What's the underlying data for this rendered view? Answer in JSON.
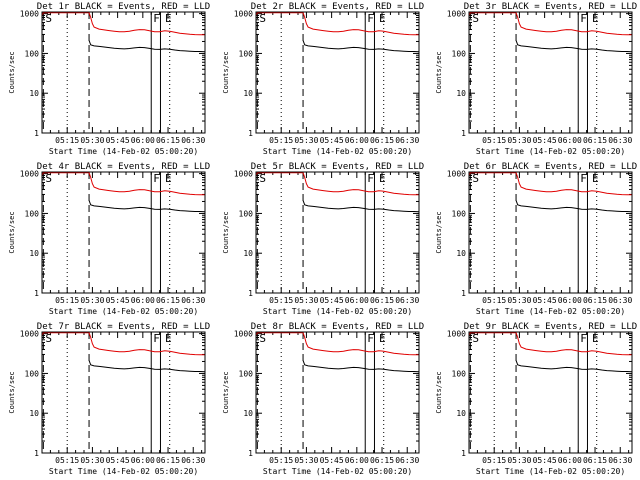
{
  "chart_data": [
    {
      "type": "line",
      "title": "Det 1r BLACK = Events, RED = LLD"
    },
    {
      "type": "line",
      "title": "Det 2r BLACK = Events, RED = LLD"
    },
    {
      "type": "line",
      "title": "Det 3r BLACK = Events, RED = LLD"
    },
    {
      "type": "line",
      "title": "Det 4r BLACK = Events, RED = LLD"
    },
    {
      "type": "line",
      "title": "Det 5r BLACK = Events, RED = LLD"
    },
    {
      "type": "line",
      "title": "Det 6r BLACK = Events, RED = LLD"
    },
    {
      "type": "line",
      "title": "Det 7r BLACK = Events, RED = LLD"
    },
    {
      "type": "line",
      "title": "Det 8r BLACK = Events, RED = LLD"
    },
    {
      "type": "line",
      "title": "Det 9r BLACK = Events, RED = LLD"
    }
  ],
  "common": {
    "ylabel": "Counts/sec",
    "xlabel": "Start Time (14-Feb-02 05:00:20)",
    "x_tick_labels": [
      "05:15",
      "05:30",
      "05:45",
      "06:00",
      "06:15",
      "06:30"
    ],
    "x_tick_minutes": [
      15,
      30,
      45,
      60,
      75,
      90
    ],
    "x_range_minutes": [
      0,
      97
    ],
    "y_tick_labels": [
      "1",
      "10",
      "100",
      "1000"
    ],
    "y_tick_values": [
      1,
      10,
      100,
      1000
    ],
    "ylim": [
      1,
      1100
    ],
    "y_scale": "log",
    "series_colors": {
      "events": "#000000",
      "lld": "#e00000"
    },
    "markers": {
      "S": {
        "label": "S",
        "minute": 0.8
      },
      "F": {
        "label": "F",
        "minute": 65
      },
      "E": {
        "label": "E",
        "minute": 72
      }
    },
    "dashed_lines_minutes": [
      0.8,
      28
    ],
    "dotted_lines_minutes": [
      15,
      76
    ],
    "solid_lines_minutes": [
      65,
      70.5
    ],
    "events": {
      "x": [
        28,
        29,
        31,
        34,
        37,
        40,
        43,
        46,
        49,
        52,
        55,
        58,
        61,
        64,
        67,
        70,
        73,
        76,
        79,
        82,
        85,
        88,
        91,
        94,
        97
      ],
      "y": [
        210,
        165,
        155,
        150,
        145,
        140,
        135,
        132,
        130,
        133,
        138,
        142,
        140,
        134,
        128,
        126,
        130,
        128,
        122,
        118,
        116,
        114,
        112,
        112,
        110
      ]
    },
    "lld": {
      "x": [
        0,
        0.8,
        28,
        29,
        30,
        31,
        34,
        37,
        40,
        43,
        46,
        49,
        52,
        55,
        58,
        61,
        64,
        67,
        70,
        73,
        76,
        79,
        82,
        85,
        88,
        91,
        94,
        97
      ],
      "y": [
        900,
        1050,
        1050,
        800,
        560,
        460,
        410,
        390,
        375,
        362,
        352,
        350,
        362,
        382,
        398,
        392,
        370,
        352,
        350,
        372,
        362,
        342,
        322,
        312,
        302,
        298,
        296,
        294
      ]
    }
  }
}
